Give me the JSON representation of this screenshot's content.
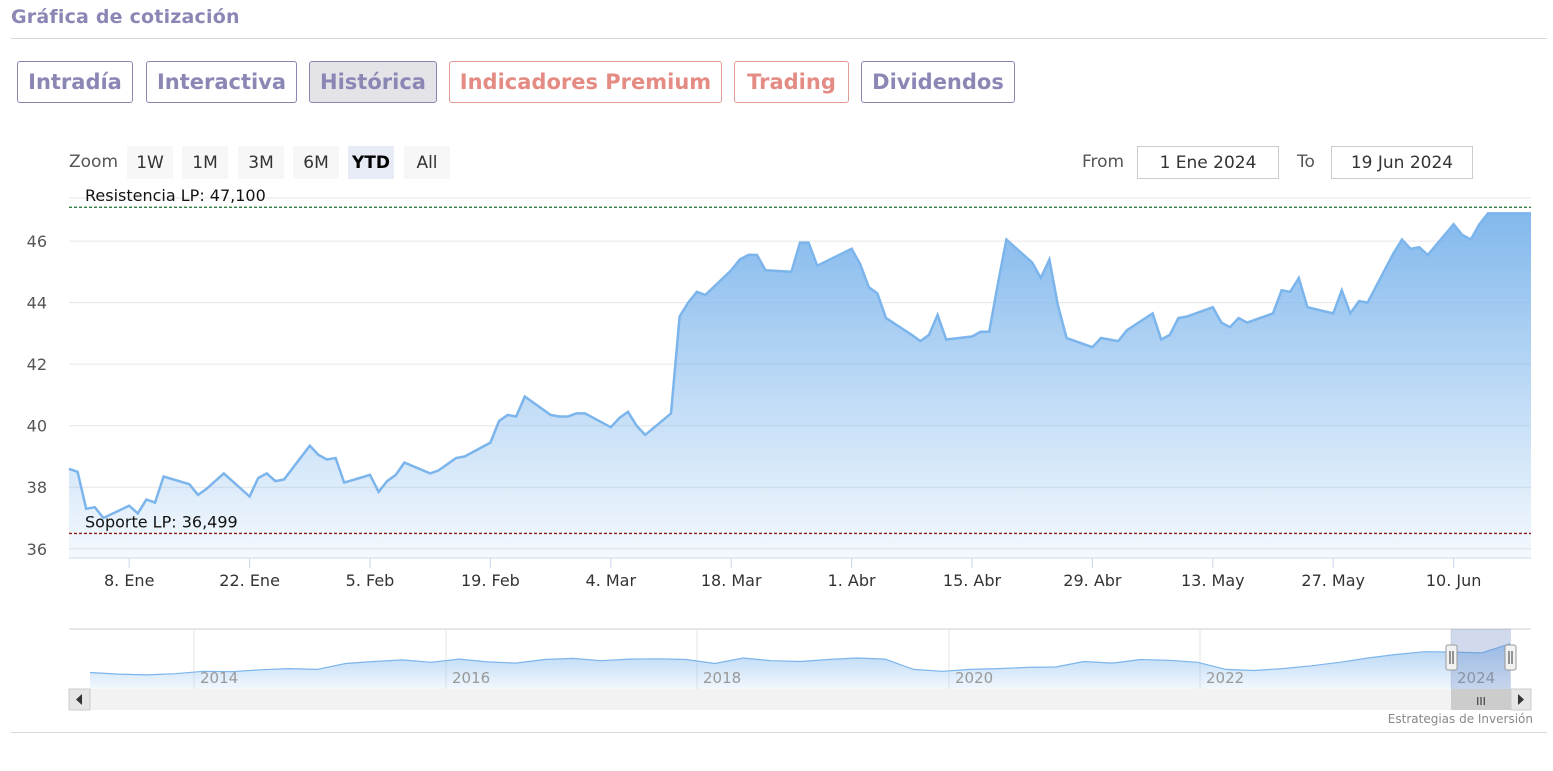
{
  "header": {
    "title": "Gráfica de cotización"
  },
  "tabs": [
    {
      "label": "Intradía",
      "style": "normal"
    },
    {
      "label": "Interactiva",
      "style": "normal"
    },
    {
      "label": "Histórica",
      "style": "active"
    },
    {
      "label": "Indicadores Premium",
      "style": "red"
    },
    {
      "label": "Trading",
      "style": "red"
    },
    {
      "label": "Dividendos",
      "style": "normal"
    }
  ],
  "zoom": {
    "label": "Zoom",
    "buttons": [
      "1W",
      "1M",
      "3M",
      "6M",
      "YTD",
      "All"
    ],
    "selected": "YTD"
  },
  "range": {
    "from_label": "From",
    "from_value": "1 Ene 2024",
    "to_label": "To",
    "to_value": "19 Jun 2024"
  },
  "colors": {
    "accent": "#8a87b5",
    "premium": "#e48b84",
    "series_line": "#7cb5ec",
    "resistance_line": "#1a6e2e",
    "support_line": "#8b1a1a"
  },
  "chart_data": {
    "type": "area",
    "title": "",
    "xlabel": "",
    "ylabel": "",
    "ylim": [
      35.7,
      47.4
    ],
    "yticks": [
      "36",
      "38",
      "40",
      "42",
      "44",
      "46"
    ],
    "xticks": [
      {
        "label": "8. Ene",
        "date": "2024-01-08"
      },
      {
        "label": "22. Ene",
        "date": "2024-01-22"
      },
      {
        "label": "5. Feb",
        "date": "2024-02-05"
      },
      {
        "label": "19. Feb",
        "date": "2024-02-19"
      },
      {
        "label": "4. Mar",
        "date": "2024-03-04"
      },
      {
        "label": "18. Mar",
        "date": "2024-03-18"
      },
      {
        "label": "1. Abr",
        "date": "2024-04-01"
      },
      {
        "label": "15. Abr",
        "date": "2024-04-15"
      },
      {
        "label": "29. Abr",
        "date": "2024-04-29"
      },
      {
        "label": "13. May",
        "date": "2024-05-13"
      },
      {
        "label": "27. May",
        "date": "2024-05-27"
      },
      {
        "label": "10. Jun",
        "date": "2024-06-10"
      }
    ],
    "x_range": [
      "2024-01-01",
      "2024-06-19"
    ],
    "grid": true,
    "resistance": {
      "label": "Resistencia LP: 47,100",
      "value": 47.1
    },
    "support": {
      "label": "Soporte LP: 36,499",
      "value": 36.499
    },
    "series": [
      {
        "points": [
          [
            "2024-01-01",
            38.6
          ],
          [
            "2024-01-02",
            38.5
          ],
          [
            "2024-01-03",
            37.3
          ],
          [
            "2024-01-04",
            37.35
          ],
          [
            "2024-01-05",
            37.0
          ],
          [
            "2024-01-08",
            37.4
          ],
          [
            "2024-01-09",
            37.15
          ],
          [
            "2024-01-10",
            37.6
          ],
          [
            "2024-01-11",
            37.5
          ],
          [
            "2024-01-12",
            38.35
          ],
          [
            "2024-01-15",
            38.1
          ],
          [
            "2024-01-16",
            37.75
          ],
          [
            "2024-01-17",
            37.95
          ],
          [
            "2024-01-18",
            38.2
          ],
          [
            "2024-01-19",
            38.45
          ],
          [
            "2024-01-22",
            37.7
          ],
          [
            "2024-01-23",
            38.3
          ],
          [
            "2024-01-24",
            38.45
          ],
          [
            "2024-01-25",
            38.2
          ],
          [
            "2024-01-26",
            38.25
          ],
          [
            "2024-01-29",
            39.35
          ],
          [
            "2024-01-30",
            39.05
          ],
          [
            "2024-01-31",
            38.9
          ],
          [
            "2024-02-01",
            38.95
          ],
          [
            "2024-02-02",
            38.15
          ],
          [
            "2024-02-05",
            38.4
          ],
          [
            "2024-02-06",
            37.85
          ],
          [
            "2024-02-07",
            38.2
          ],
          [
            "2024-02-08",
            38.4
          ],
          [
            "2024-02-09",
            38.8
          ],
          [
            "2024-02-12",
            38.45
          ],
          [
            "2024-02-13",
            38.55
          ],
          [
            "2024-02-14",
            38.75
          ],
          [
            "2024-02-15",
            38.95
          ],
          [
            "2024-02-16",
            39.0
          ],
          [
            "2024-02-19",
            39.45
          ],
          [
            "2024-02-20",
            40.15
          ],
          [
            "2024-02-21",
            40.35
          ],
          [
            "2024-02-22",
            40.3
          ],
          [
            "2024-02-23",
            40.95
          ],
          [
            "2024-02-26",
            40.35
          ],
          [
            "2024-02-27",
            40.3
          ],
          [
            "2024-02-28",
            40.3
          ],
          [
            "2024-02-29",
            40.4
          ],
          [
            "2024-03-01",
            40.4
          ],
          [
            "2024-03-04",
            39.95
          ],
          [
            "2024-03-05",
            40.25
          ],
          [
            "2024-03-06",
            40.45
          ],
          [
            "2024-03-07",
            40.0
          ],
          [
            "2024-03-08",
            39.7
          ],
          [
            "2024-03-11",
            40.4
          ],
          [
            "2024-03-12",
            43.55
          ],
          [
            "2024-03-13",
            44.0
          ],
          [
            "2024-03-14",
            44.35
          ],
          [
            "2024-03-15",
            44.25
          ],
          [
            "2024-03-18",
            45.05
          ],
          [
            "2024-03-19",
            45.4
          ],
          [
            "2024-03-20",
            45.55
          ],
          [
            "2024-03-21",
            45.55
          ],
          [
            "2024-03-22",
            45.05
          ],
          [
            "2024-03-25",
            45.0
          ],
          [
            "2024-03-26",
            45.95
          ],
          [
            "2024-03-27",
            45.95
          ],
          [
            "2024-03-28",
            45.2
          ],
          [
            "2024-04-01",
            45.75
          ],
          [
            "2024-04-02",
            45.25
          ],
          [
            "2024-04-03",
            44.5
          ],
          [
            "2024-04-04",
            44.3
          ],
          [
            "2024-04-05",
            43.5
          ],
          [
            "2024-04-08",
            42.95
          ],
          [
            "2024-04-09",
            42.75
          ],
          [
            "2024-04-10",
            42.95
          ],
          [
            "2024-04-11",
            43.6
          ],
          [
            "2024-04-12",
            42.8
          ],
          [
            "2024-04-15",
            42.9
          ],
          [
            "2024-04-16",
            43.05
          ],
          [
            "2024-04-17",
            43.05
          ],
          [
            "2024-04-18",
            44.6
          ],
          [
            "2024-04-19",
            46.05
          ],
          [
            "2024-04-22",
            45.3
          ],
          [
            "2024-04-23",
            44.8
          ],
          [
            "2024-04-24",
            45.4
          ],
          [
            "2024-04-25",
            43.9
          ],
          [
            "2024-04-26",
            42.85
          ],
          [
            "2024-04-29",
            42.55
          ],
          [
            "2024-04-30",
            42.85
          ],
          [
            "2024-05-02",
            42.75
          ],
          [
            "2024-05-03",
            43.1
          ],
          [
            "2024-05-06",
            43.65
          ],
          [
            "2024-05-07",
            42.8
          ],
          [
            "2024-05-08",
            42.95
          ],
          [
            "2024-05-09",
            43.5
          ],
          [
            "2024-05-10",
            43.55
          ],
          [
            "2024-05-13",
            43.85
          ],
          [
            "2024-05-14",
            43.35
          ],
          [
            "2024-05-15",
            43.2
          ],
          [
            "2024-05-16",
            43.5
          ],
          [
            "2024-05-17",
            43.35
          ],
          [
            "2024-05-20",
            43.65
          ],
          [
            "2024-05-21",
            44.4
          ],
          [
            "2024-05-22",
            44.35
          ],
          [
            "2024-05-23",
            44.8
          ],
          [
            "2024-05-24",
            43.85
          ],
          [
            "2024-05-27",
            43.65
          ],
          [
            "2024-05-28",
            44.4
          ],
          [
            "2024-05-29",
            43.65
          ],
          [
            "2024-05-30",
            44.05
          ],
          [
            "2024-05-31",
            44.0
          ],
          [
            "2024-06-03",
            45.6
          ],
          [
            "2024-06-04",
            46.05
          ],
          [
            "2024-06-05",
            45.75
          ],
          [
            "2024-06-06",
            45.8
          ],
          [
            "2024-06-07",
            45.55
          ],
          [
            "2024-06-10",
            46.55
          ],
          [
            "2024-06-11",
            46.2
          ],
          [
            "2024-06-12",
            46.05
          ],
          [
            "2024-06-13",
            46.55
          ],
          [
            "2024-06-14",
            46.9
          ],
          [
            "2024-06-17",
            46.9
          ],
          [
            "2024-06-19",
            46.9
          ]
        ]
      }
    ]
  },
  "navigator": {
    "year_labels": [
      "2014",
      "2016",
      "2018",
      "2020",
      "2022",
      "2024"
    ],
    "values": [
      30.2,
      29.8,
      29.6,
      29.9,
      30.5,
      30.4,
      30.9,
      31.2,
      31.0,
      32.5,
      33.0,
      33.4,
      32.8,
      33.6,
      32.9,
      32.6,
      33.5,
      33.8,
      33.2,
      33.6,
      33.7,
      33.5,
      32.5,
      33.9,
      33.2,
      33.0,
      33.5,
      33.9,
      33.6,
      31.0,
      30.5,
      31.0,
      31.2,
      31.5,
      31.6,
      33.0,
      32.6,
      33.5,
      33.3,
      32.8,
      31.0,
      30.7,
      31.2,
      31.9,
      32.8,
      33.9,
      34.8,
      35.5,
      35.4,
      35.2,
      37.5
    ]
  },
  "scrollbar": {
    "grip": "III"
  },
  "credit": "Estrategias de Inversión"
}
